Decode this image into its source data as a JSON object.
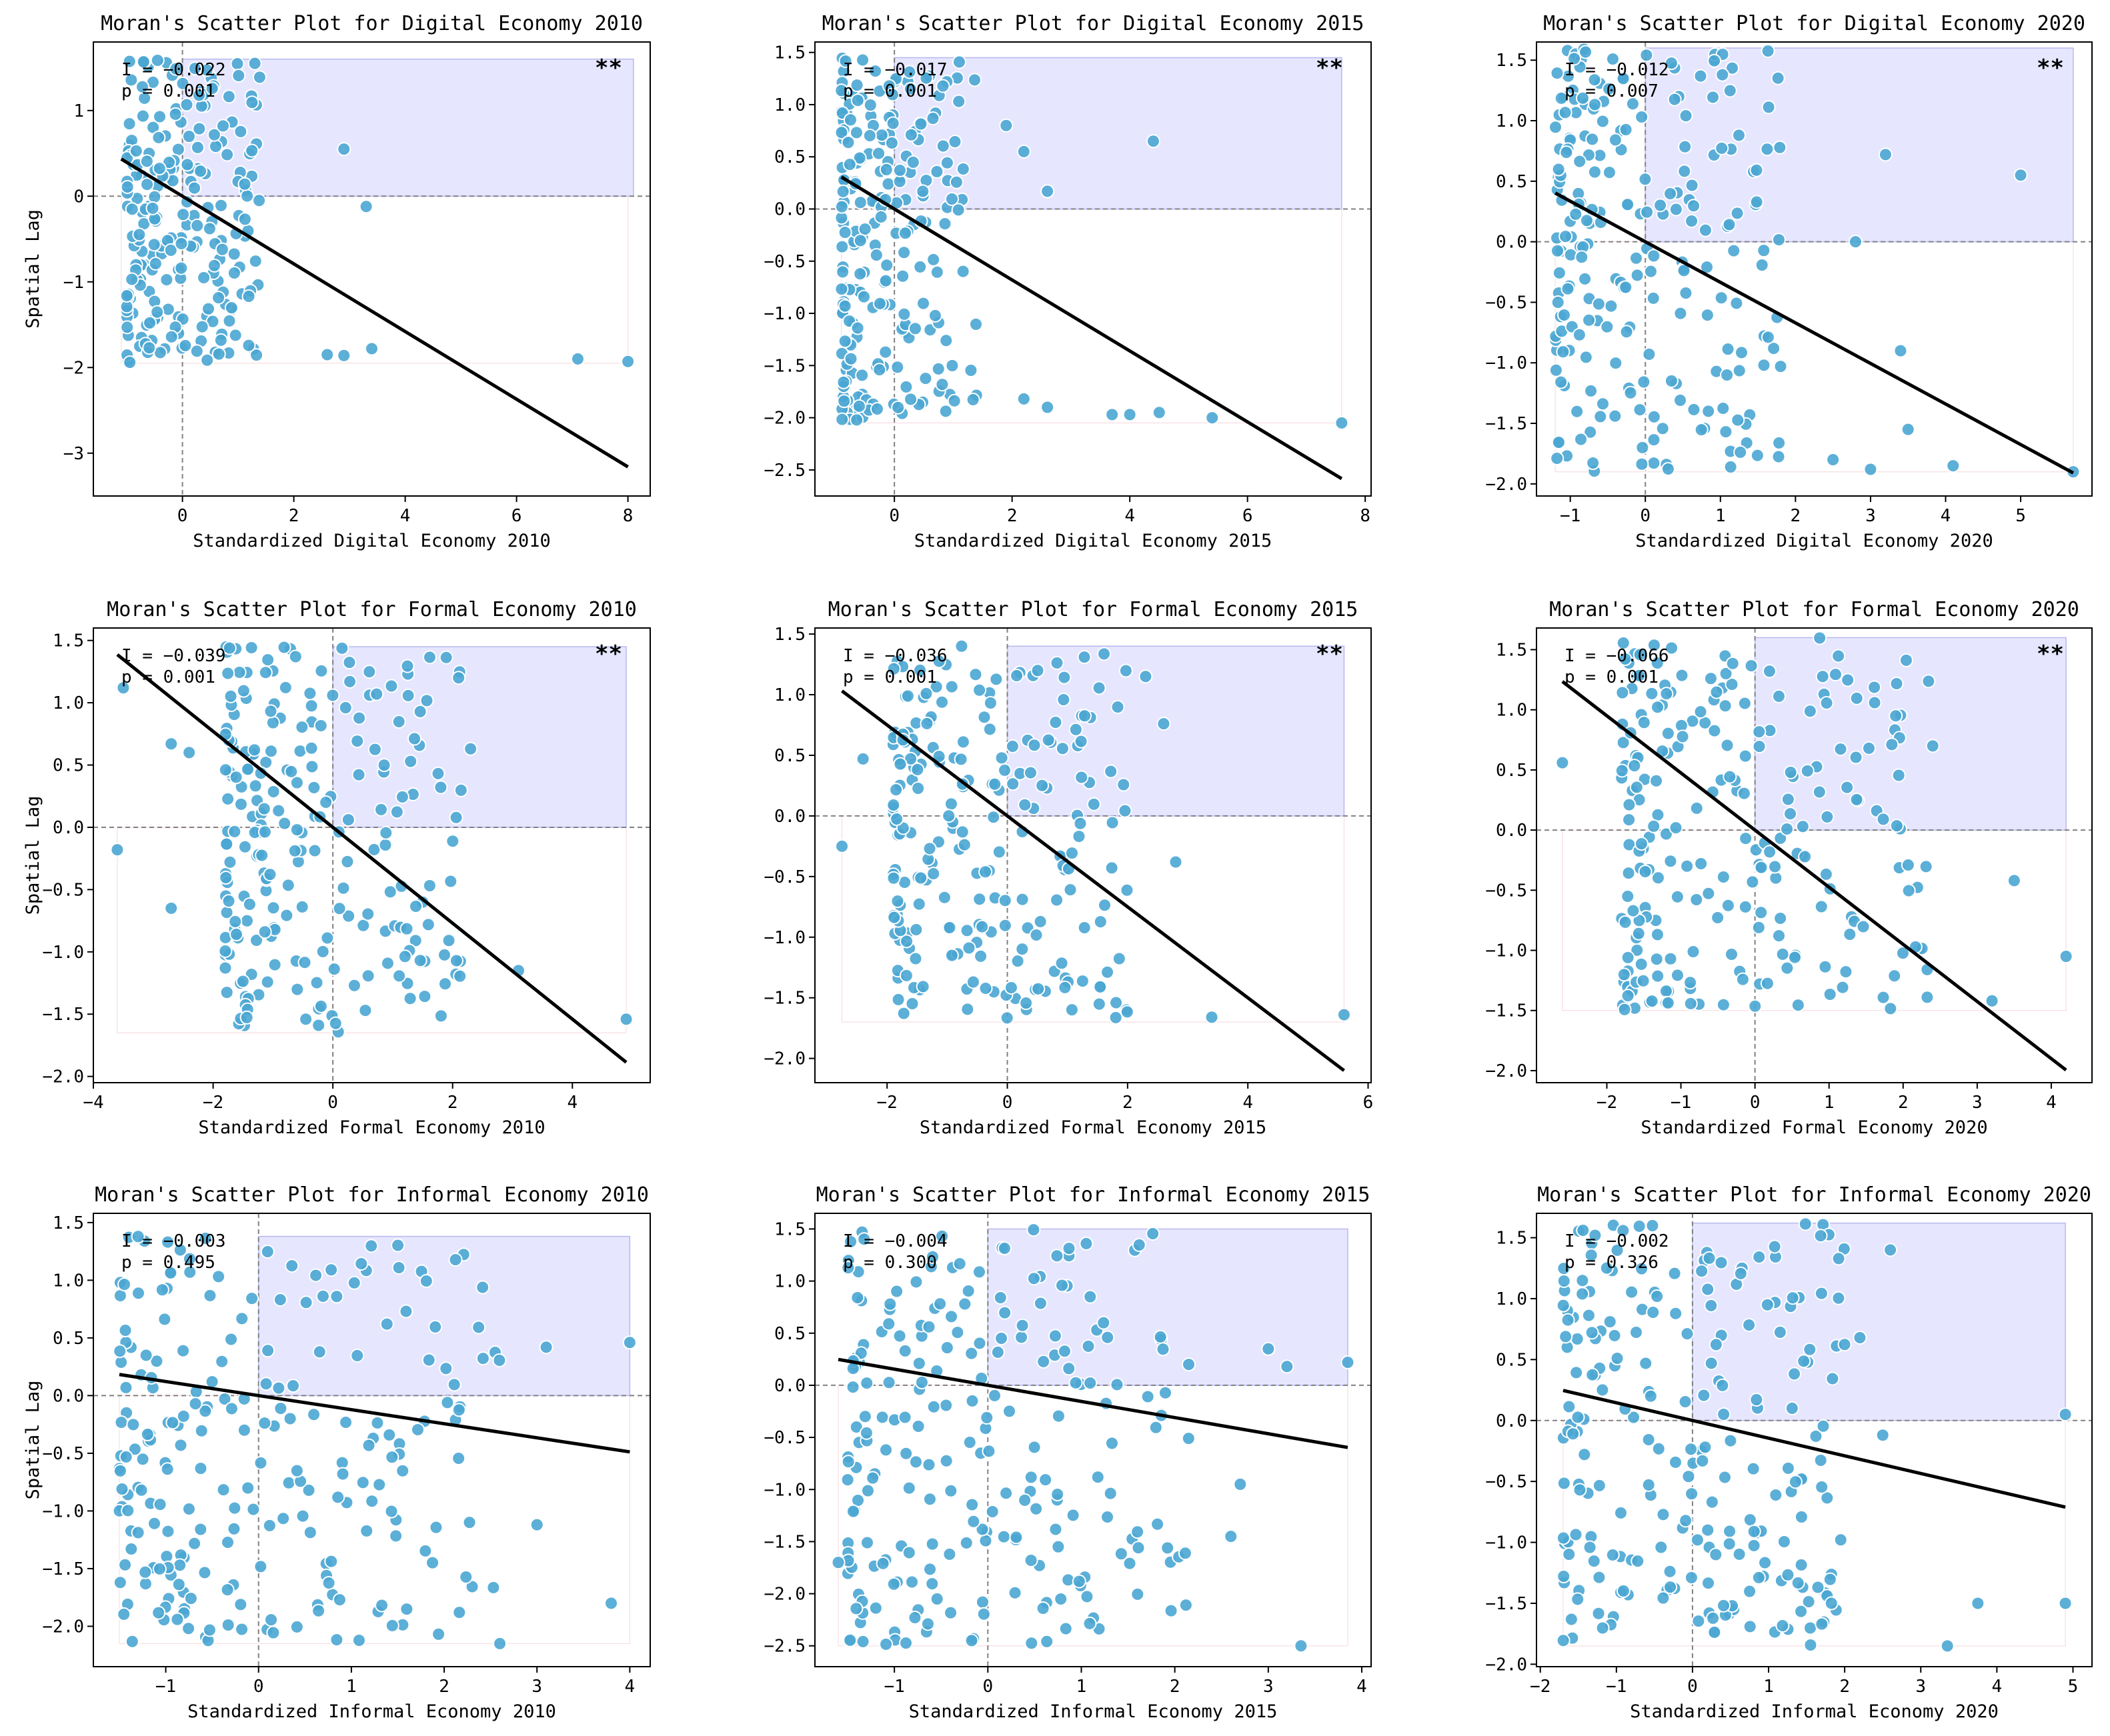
{
  "figure": {
    "colors": {
      "point": "#4aa6d3",
      "point_edge": "#ffffff",
      "highlight_fill": "#e6e6ff",
      "highlight_edge": "#b8b8f0",
      "line": "#000000",
      "ref_line": "#808080",
      "low_box": "#f4c6cc"
    }
  },
  "chart_data": [
    {
      "type": "scatter",
      "title": "Moran's Scatter Plot for Digital Economy 2010",
      "xlabel": "Standardized Digital Economy 2010",
      "ylabel": "Spatial Lag",
      "xlim": [
        -1.6,
        8.4
      ],
      "ylim": [
        -3.5,
        1.8
      ],
      "xticks": [
        0,
        2,
        4,
        6,
        8
      ],
      "yticks": [
        -3,
        -2,
        -1,
        0,
        1
      ],
      "xtick_labels": [
        "0",
        "2",
        "4",
        "6",
        "8"
      ],
      "ytick_labels": [
        "−3",
        "−2",
        "−1",
        "0",
        "1"
      ],
      "moran_i_label": "I = −0.022",
      "p_label": "p = 0.001",
      "significance": "**",
      "regression": {
        "slope": -0.395,
        "intercept": 0.0
      },
      "x_range": [
        -1.1,
        8.0
      ],
      "quadrant_box": [
        0,
        8.1,
        0,
        1.6
      ],
      "low_box": [
        -1.1,
        8.0,
        -1.95,
        0
      ],
      "n": 230,
      "seed": 11,
      "x_range_main": [
        -1.0,
        1.4
      ],
      "y_range": [
        -1.95,
        1.6
      ],
      "outliers": [
        [
          2.9,
          0.55
        ],
        [
          3.3,
          -0.12
        ],
        [
          3.4,
          -1.78
        ],
        [
          2.6,
          -1.85
        ],
        [
          2.9,
          -1.86
        ],
        [
          7.1,
          -1.9
        ],
        [
          8.0,
          -1.93
        ],
        [
          1.3,
          1.55
        ]
      ]
    },
    {
      "type": "scatter",
      "title": "Moran's Scatter Plot for Digital Economy 2015",
      "xlabel": "Standardized Digital Economy 2015",
      "ylabel": "",
      "xlim": [
        -1.35,
        8.1
      ],
      "ylim": [
        -2.75,
        1.6
      ],
      "xticks": [
        0,
        2,
        4,
        6,
        8
      ],
      "yticks": [
        -2.5,
        -2,
        -1.5,
        -1,
        -0.5,
        0,
        0.5,
        1,
        1.5
      ],
      "xtick_labels": [
        "0",
        "2",
        "4",
        "6",
        "8"
      ],
      "ytick_labels": [
        "−2.5",
        "−2.0",
        "−1.5",
        "−1.0",
        "−0.5",
        "0.0",
        "0.5",
        "1.0",
        "1.5"
      ],
      "moran_i_label": "I = −0.017",
      "p_label": "p = 0.001",
      "significance": "**",
      "regression": {
        "slope": -0.34,
        "intercept": 0.0
      },
      "x_range": [
        -0.9,
        7.6
      ],
      "quadrant_box": [
        0,
        7.6,
        0,
        1.45
      ],
      "low_box": [
        -0.9,
        7.6,
        -2.05,
        0
      ],
      "n": 230,
      "seed": 23,
      "x_range_main": [
        -0.9,
        1.4
      ],
      "y_range": [
        -2.05,
        1.45
      ],
      "outliers": [
        [
          4.4,
          0.65
        ],
        [
          2.6,
          0.17
        ],
        [
          1.9,
          0.8
        ],
        [
          2.2,
          0.55
        ],
        [
          3.7,
          -1.97
        ],
        [
          4.0,
          -1.97
        ],
        [
          4.5,
          -1.95
        ],
        [
          5.4,
          -2.0
        ],
        [
          7.6,
          -2.05
        ],
        [
          2.2,
          -1.82
        ],
        [
          2.6,
          -1.9
        ]
      ]
    },
    {
      "type": "scatter",
      "title": "Moran's Scatter Plot for Digital Economy 2020",
      "xlabel": "Standardized Digital Economy 2020",
      "ylabel": "",
      "xlim": [
        -1.45,
        5.95
      ],
      "ylim": [
        -2.1,
        1.65
      ],
      "xticks": [
        -1,
        0,
        1,
        2,
        3,
        4,
        5
      ],
      "yticks": [
        -2,
        -1.5,
        -1,
        -0.5,
        0,
        0.5,
        1,
        1.5
      ],
      "xtick_labels": [
        "−1",
        "0",
        "1",
        "2",
        "3",
        "4",
        "5"
      ],
      "ytick_labels": [
        "−2.0",
        "−1.5",
        "−1.0",
        "−0.5",
        "0.0",
        "0.5",
        "1.0",
        "1.5"
      ],
      "moran_i_label": "I = −0.012",
      "p_label": "p = 0.007",
      "significance": "**",
      "regression": {
        "slope": -0.335,
        "intercept": 0.0
      },
      "x_range": [
        -1.2,
        5.7
      ],
      "quadrant_box": [
        0,
        5.7,
        0,
        1.6
      ],
      "low_box": [
        -1.2,
        5.7,
        -1.9,
        0
      ],
      "n": 230,
      "seed": 37,
      "x_range_main": [
        -1.2,
        1.9
      ],
      "y_range": [
        -1.9,
        1.6
      ],
      "outliers": [
        [
          3.2,
          0.72
        ],
        [
          5.0,
          0.55
        ],
        [
          2.8,
          0.0
        ],
        [
          3.4,
          -0.9
        ],
        [
          4.1,
          -1.85
        ],
        [
          5.7,
          -1.9
        ],
        [
          3.0,
          -1.88
        ],
        [
          2.5,
          -1.8
        ],
        [
          3.5,
          -1.55
        ]
      ]
    },
    {
      "type": "scatter",
      "title": "Moran's Scatter Plot for Formal Economy 2010",
      "xlabel": "Standardized Formal Economy 2010",
      "ylabel": "Spatial Lag",
      "xlim": [
        -4.0,
        5.3
      ],
      "ylim": [
        -2.05,
        1.6
      ],
      "xticks": [
        -4,
        -2,
        0,
        2,
        4
      ],
      "yticks": [
        -2,
        -1.5,
        -1,
        -0.5,
        0,
        0.5,
        1,
        1.5
      ],
      "xtick_labels": [
        "−4",
        "−2",
        "0",
        "2",
        "4"
      ],
      "ytick_labels": [
        "−2.0",
        "−1.5",
        "−1.0",
        "−0.5",
        "0.0",
        "0.5",
        "1.0",
        "1.5"
      ],
      "moran_i_label": "I = −0.039",
      "p_label": "p = 0.001",
      "significance": "**",
      "regression": {
        "slope": -0.385,
        "intercept": 0.0
      },
      "x_range": [
        -3.6,
        4.9
      ],
      "quadrant_box": [
        0,
        4.9,
        0,
        1.45
      ],
      "low_box": [
        -3.6,
        4.9,
        -1.65,
        0
      ],
      "n": 230,
      "seed": 41,
      "x_range_main": [
        -1.8,
        2.2
      ],
      "y_range": [
        -1.65,
        1.45
      ],
      "outliers": [
        [
          -3.6,
          -0.18
        ],
        [
          -3.5,
          1.12
        ],
        [
          -2.7,
          0.67
        ],
        [
          -2.7,
          -0.65
        ],
        [
          -2.4,
          0.6
        ],
        [
          4.9,
          -1.54
        ],
        [
          3.1,
          -1.15
        ],
        [
          2.3,
          0.63
        ],
        [
          2.1,
          1.2
        ]
      ]
    },
    {
      "type": "scatter",
      "title": "Moran's Scatter Plot for Formal Economy 2015",
      "xlabel": "Standardized Formal Economy 2015",
      "ylabel": "",
      "xlim": [
        -3.2,
        6.05
      ],
      "ylim": [
        -2.2,
        1.55
      ],
      "xticks": [
        -2,
        0,
        2,
        4,
        6
      ],
      "yticks": [
        -2,
        -1.5,
        -1,
        -0.5,
        0,
        0.5,
        1,
        1.5
      ],
      "xtick_labels": [
        "−2",
        "0",
        "2",
        "4",
        "6"
      ],
      "ytick_labels": [
        "−2.0",
        "−1.5",
        "−1.0",
        "−0.5",
        "0.0",
        "0.5",
        "1.0",
        "1.5"
      ],
      "moran_i_label": "I = −0.036",
      "p_label": "p = 0.001",
      "significance": "**",
      "regression": {
        "slope": -0.375,
        "intercept": 0.0
      },
      "x_range": [
        -2.75,
        5.6
      ],
      "quadrant_box": [
        0,
        5.6,
        0,
        1.4
      ],
      "low_box": [
        -2.75,
        5.6,
        -1.7,
        0
      ],
      "n": 230,
      "seed": 53,
      "x_range_main": [
        -1.9,
        2.0
      ],
      "y_range": [
        -1.7,
        1.4
      ],
      "outliers": [
        [
          -2.75,
          -0.25
        ],
        [
          -2.4,
          0.47
        ],
        [
          5.6,
          -1.64
        ],
        [
          3.4,
          -1.66
        ],
        [
          2.8,
          -0.38
        ],
        [
          2.3,
          1.15
        ],
        [
          2.6,
          0.76
        ]
      ]
    },
    {
      "type": "scatter",
      "title": "Moran's Scatter Plot for Formal Economy 2020",
      "xlabel": "Standardized Formal Economy 2020",
      "ylabel": "",
      "xlim": [
        -2.95,
        4.55
      ],
      "ylim": [
        -2.1,
        1.68
      ],
      "xticks": [
        -2,
        -1,
        0,
        1,
        2,
        3,
        4
      ],
      "yticks": [
        -2,
        -1.5,
        -1,
        -0.5,
        0,
        0.5,
        1,
        1.5
      ],
      "xtick_labels": [
        "−2",
        "−1",
        "0",
        "1",
        "2",
        "3",
        "4"
      ],
      "ytick_labels": [
        "−2.0",
        "−1.5",
        "−1.0",
        "−0.5",
        "0.0",
        "0.5",
        "1.0",
        "1.5"
      ],
      "moran_i_label": "I = −0.066",
      "p_label": "p = 0.001",
      "significance": "**",
      "regression": {
        "slope": -0.475,
        "intercept": 0.0
      },
      "x_range": [
        -2.6,
        4.2
      ],
      "quadrant_box": [
        0,
        4.2,
        0,
        1.6
      ],
      "low_box": [
        -2.6,
        4.2,
        -1.5,
        0
      ],
      "n": 230,
      "seed": 67,
      "x_range_main": [
        -1.8,
        2.4
      ],
      "y_range": [
        -1.5,
        1.6
      ],
      "outliers": [
        [
          -2.6,
          0.56
        ],
        [
          4.2,
          -1.05
        ],
        [
          3.5,
          -0.42
        ],
        [
          2.4,
          0.7
        ],
        [
          1.9,
          0.95
        ],
        [
          3.2,
          -1.42
        ]
      ]
    },
    {
      "type": "scatter",
      "title": "Moran's Scatter Plot for Informal Economy 2010",
      "xlabel": "Standardized Informal Economy 2010",
      "ylabel": "Spatial Lag",
      "xlim": [
        -1.78,
        4.22
      ],
      "ylim": [
        -2.35,
        1.58
      ],
      "xticks": [
        -1,
        0,
        1,
        2,
        3,
        4
      ],
      "yticks": [
        -2,
        -1.5,
        -1,
        -0.5,
        0,
        0.5,
        1,
        1.5
      ],
      "xtick_labels": [
        "−1",
        "0",
        "1",
        "2",
        "3",
        "4"
      ],
      "ytick_labels": [
        "−2.0",
        "−1.5",
        "−1.0",
        "−0.5",
        "0.0",
        "0.5",
        "1.0",
        "1.5"
      ],
      "moran_i_label": "I = −0.003",
      "p_label": "p = 0.495",
      "significance": "",
      "regression": {
        "slope": -0.122,
        "intercept": 0.0
      },
      "x_range": [
        -1.5,
        4.0
      ],
      "quadrant_box": [
        0,
        4.0,
        0,
        1.38
      ],
      "low_box": [
        -1.5,
        4.0,
        -2.15,
        0
      ],
      "n": 230,
      "seed": 79,
      "x_range_main": [
        -1.5,
        2.6
      ],
      "y_range": [
        -2.15,
        1.38
      ],
      "outliers": [
        [
          4.0,
          0.46
        ],
        [
          3.1,
          0.42
        ],
        [
          3.0,
          -1.12
        ],
        [
          3.8,
          -1.8
        ],
        [
          2.6,
          -2.15
        ]
      ]
    },
    {
      "type": "scatter",
      "title": "Moran's Scatter Plot for Informal Economy 2015",
      "xlabel": "Standardized Informal Economy 2015",
      "ylabel": "",
      "xlim": [
        -1.85,
        4.1
      ],
      "ylim": [
        -2.7,
        1.65
      ],
      "xticks": [
        -1,
        0,
        1,
        2,
        3,
        4
      ],
      "yticks": [
        -2.5,
        -2,
        -1.5,
        -1,
        -0.5,
        0,
        0.5,
        1,
        1.5
      ],
      "xtick_labels": [
        "−1",
        "0",
        "1",
        "2",
        "3",
        "4"
      ],
      "ytick_labels": [
        "−2.5",
        "−2.0",
        "−1.5",
        "−1.0",
        "−0.5",
        "0.0",
        "0.5",
        "1.0",
        "1.5"
      ],
      "moran_i_label": "I = −0.004",
      "p_label": "p = 0.300",
      "significance": "",
      "regression": {
        "slope": -0.155,
        "intercept": 0.0
      },
      "x_range": [
        -1.6,
        3.85
      ],
      "quadrant_box": [
        0,
        3.85,
        0,
        1.5
      ],
      "low_box": [
        -1.6,
        3.85,
        -2.5,
        0
      ],
      "n": 230,
      "seed": 83,
      "x_range_main": [
        -1.5,
        2.2
      ],
      "y_range": [
        -2.5,
        1.5
      ],
      "outliers": [
        [
          3.85,
          0.22
        ],
        [
          3.35,
          -2.5
        ],
        [
          2.6,
          -1.45
        ],
        [
          2.7,
          -0.95
        ],
        [
          3.0,
          0.35
        ],
        [
          3.2,
          0.18
        ],
        [
          -1.6,
          -1.7
        ]
      ]
    },
    {
      "type": "scatter",
      "title": "Moran's Scatter Plot for Informal Economy 2020",
      "xlabel": "Standardized Informal Economy 2020",
      "ylabel": "",
      "xlim": [
        -2.05,
        5.25
      ],
      "ylim": [
        -2.02,
        1.7
      ],
      "xticks": [
        -2,
        -1,
        0,
        1,
        2,
        3,
        4,
        5
      ],
      "yticks": [
        -2,
        -1.5,
        -1,
        -0.5,
        0,
        0.5,
        1,
        1.5
      ],
      "xtick_labels": [
        "−2",
        "−1",
        "0",
        "1",
        "2",
        "3",
        "4",
        "5"
      ],
      "ytick_labels": [
        "−2.0",
        "−1.5",
        "−1.0",
        "−0.5",
        "0.0",
        "0.5",
        "1.0",
        "1.5"
      ],
      "moran_i_label": "I = −0.002",
      "p_label": "p = 0.326",
      "significance": "",
      "regression": {
        "slope": -0.145,
        "intercept": 0.0
      },
      "x_range": [
        -1.7,
        4.9
      ],
      "quadrant_box": [
        0,
        4.9,
        0,
        1.62
      ],
      "low_box": [
        -1.7,
        4.9,
        -1.85,
        0
      ],
      "n": 230,
      "seed": 97,
      "x_range_main": [
        -1.7,
        2.0
      ],
      "y_range": [
        -1.85,
        1.62
      ],
      "outliers": [
        [
          4.9,
          0.05
        ],
        [
          4.9,
          -1.5
        ],
        [
          3.75,
          -1.5
        ],
        [
          3.35,
          -1.85
        ],
        [
          2.6,
          1.4
        ],
        [
          2.2,
          0.68
        ],
        [
          2.5,
          -0.12
        ]
      ]
    }
  ]
}
